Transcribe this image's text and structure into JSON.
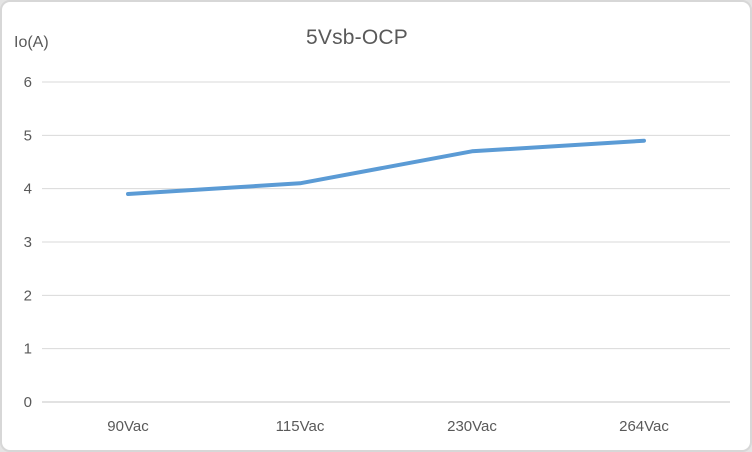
{
  "chart_data": {
    "type": "line",
    "title": "5Vsb-OCP",
    "ylabel": "Io(A)",
    "xlabel": "",
    "categories": [
      "90Vac",
      "115Vac",
      "230Vac",
      "264Vac"
    ],
    "series": [
      {
        "name": "",
        "values": [
          3.9,
          4.1,
          4.7,
          4.9
        ]
      }
    ],
    "ylim": [
      0,
      6
    ],
    "ytick_step": 1,
    "grid": true,
    "legend": false
  },
  "colors": {
    "line": "#5b9bd5",
    "gridline": "#d9d9d9",
    "axis_line": "#c6c6c6",
    "text": "#595959",
    "border": "#d7d7d7",
    "background": "#ffffff"
  }
}
